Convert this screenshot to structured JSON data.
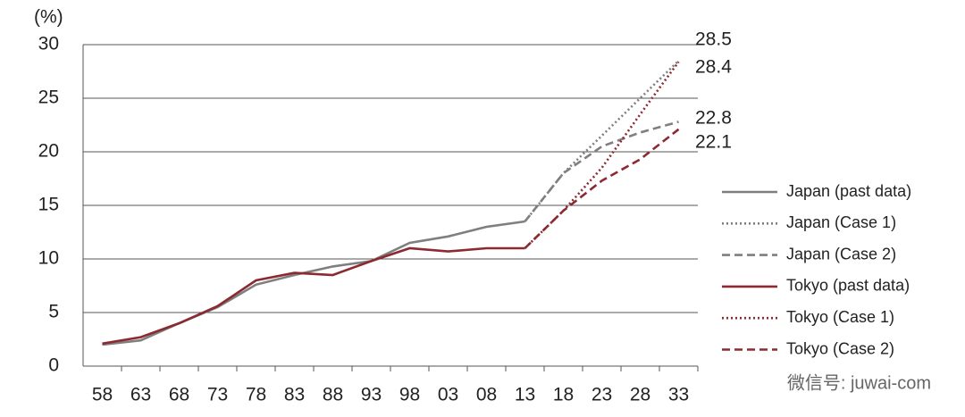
{
  "chart_data": {
    "type": "line",
    "y_label": "(%)",
    "watermark": "微信号: juwai-com",
    "categories": [
      "58",
      "63",
      "68",
      "73",
      "78",
      "83",
      "88",
      "93",
      "98",
      "03",
      "08",
      "13",
      "18",
      "23",
      "28",
      "33"
    ],
    "ylim": [
      0,
      30
    ],
    "yticks": [
      0,
      5,
      10,
      15,
      20,
      25,
      30
    ],
    "grid": true,
    "legend": "right",
    "series": [
      {
        "name": "Japan (past data)",
        "color": "#7f7f7f",
        "style": "solid",
        "values": [
          2.0,
          2.4,
          4.0,
          5.5,
          7.6,
          8.5,
          9.3,
          9.8,
          11.5,
          12.1,
          13.0,
          13.5,
          null,
          null,
          null,
          null
        ]
      },
      {
        "name": "Japan (Case 1)",
        "color": "#7f7f7f",
        "style": "dotted",
        "values": [
          null,
          null,
          null,
          null,
          null,
          null,
          null,
          null,
          null,
          null,
          null,
          13.5,
          18.0,
          21.5,
          25.0,
          28.5
        ]
      },
      {
        "name": "Japan (Case 2)",
        "color": "#7f7f7f",
        "style": "dashed",
        "values": [
          null,
          null,
          null,
          null,
          null,
          null,
          null,
          null,
          null,
          null,
          null,
          13.5,
          18.0,
          20.5,
          21.8,
          22.8
        ]
      },
      {
        "name": "Tokyo (past data)",
        "color": "#8b2a30",
        "style": "solid",
        "values": [
          2.1,
          2.7,
          4.0,
          5.6,
          8.0,
          8.7,
          8.5,
          9.8,
          11.0,
          10.7,
          11.0,
          11.0,
          null,
          null,
          null,
          null
        ]
      },
      {
        "name": "Tokyo (Case 1)",
        "color": "#8b2a30",
        "style": "dotted",
        "values": [
          null,
          null,
          null,
          null,
          null,
          null,
          null,
          null,
          null,
          null,
          null,
          11.0,
          14.5,
          18.5,
          23.5,
          28.4
        ]
      },
      {
        "name": "Tokyo (Case 2)",
        "color": "#8b2a30",
        "style": "dashed",
        "values": [
          null,
          null,
          null,
          null,
          null,
          null,
          null,
          null,
          null,
          null,
          null,
          11.0,
          14.5,
          17.3,
          19.3,
          22.1
        ]
      }
    ]
  }
}
